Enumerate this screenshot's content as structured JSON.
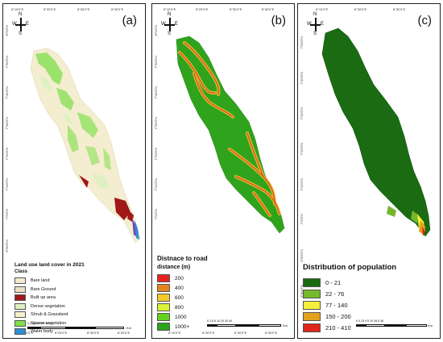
{
  "panels": [
    {
      "letter": "(a)",
      "legend_title": "Land use land cover in 2021",
      "legend_subtitle": "Class",
      "legend": [
        {
          "label": "Bare land",
          "color": "#f3ead0"
        },
        {
          "label": "Bare Ground",
          "color": "#eadfc4"
        },
        {
          "label": "Built up area",
          "color": "#a01818"
        },
        {
          "label": "Dense vegetation",
          "color": "#dff1c4"
        },
        {
          "label": "Shrub & Grassland",
          "color": "#f6f0cc"
        },
        {
          "label": "Sparse vegetation",
          "color": "#7fe14a"
        },
        {
          "label": "Water body",
          "color": "#2e8fd6"
        }
      ],
      "scale": {
        "ticks": "0  2.5  5     10       20        30        40",
        "unit": "Km"
      }
    },
    {
      "letter": "(b)",
      "legend_title": "Distnace to road",
      "legend_subtitle": "distance (m)",
      "legend": [
        {
          "label": "200",
          "color": "#e8231d"
        },
        {
          "label": "400",
          "color": "#e4841e"
        },
        {
          "label": "600",
          "color": "#f2cb2a"
        },
        {
          "label": "800",
          "color": "#d9f232"
        },
        {
          "label": "1000",
          "color": "#62d21f"
        },
        {
          "label": "1000+",
          "color": "#29a51a"
        }
      ],
      "scale": {
        "ticks": "0  2.5  5     10       20        30        40",
        "unit": "Km"
      }
    },
    {
      "letter": "(c)",
      "legend_title": "Distribution of population",
      "legend": [
        {
          "label": "0 - 21",
          "color": "#1a6b12"
        },
        {
          "label": "22 - 76",
          "color": "#76b82b"
        },
        {
          "label": "77 - 140",
          "color": "#f6ef3a"
        },
        {
          "label": "150 - 200",
          "color": "#e2a21b"
        },
        {
          "label": "210 - 410",
          "color": "#e0261b"
        }
      ],
      "scale": {
        "ticks": "0  4.75  9.5      19      28.5      38",
        "unit": "Km"
      }
    }
  ],
  "north_arrow": {
    "n": "N",
    "s": "S",
    "w": "W",
    "e": "E"
  },
  "lon_labels": [
    "8°10'0\"E",
    "8°20'0\"E",
    "8°30'0\"E",
    "8°40'0\"E"
  ],
  "lat_labels": [
    "8°0'0\"N",
    "7°50'0\"N",
    "7°40'0\"N",
    "7°30'0\"N",
    "7°20'0\"N",
    "7°10'0\"N",
    "7°0'0\"N",
    "6°50'0\"N",
    "6°40'0\"N"
  ]
}
